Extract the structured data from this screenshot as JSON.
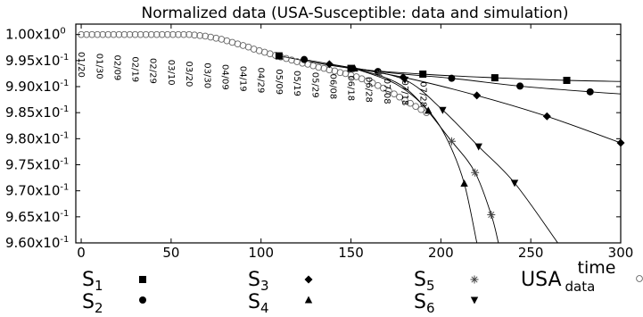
{
  "chart_data": {
    "type": "scatter",
    "title": "Normalized data (USA-Susceptible: data and simulation)",
    "xlabel": "time",
    "ylabel": "",
    "xlim": [
      -3,
      300
    ],
    "ylim": [
      0.96,
      1.002
    ],
    "x_ticks": [
      "0",
      "50",
      "100",
      "150",
      "200",
      "250",
      "300"
    ],
    "x_tick_values": [
      0,
      50,
      100,
      150,
      200,
      250,
      300
    ],
    "y_ticks": [
      {
        "value": 1.0,
        "mantissa": "1.00x10",
        "exp": "0"
      },
      {
        "value": 0.995,
        "mantissa": "9.95x10",
        "exp": "-1"
      },
      {
        "value": 0.99,
        "mantissa": "9.90x10",
        "exp": "-1"
      },
      {
        "value": 0.985,
        "mantissa": "9.85x10",
        "exp": "-1"
      },
      {
        "value": 0.98,
        "mantissa": "9.80x10",
        "exp": "-1"
      },
      {
        "value": 0.975,
        "mantissa": "9.75x10",
        "exp": "-1"
      },
      {
        "value": 0.97,
        "mantissa": "9.70x10",
        "exp": "-1"
      },
      {
        "value": 0.965,
        "mantissa": "9.65x10",
        "exp": "-1"
      },
      {
        "value": 0.96,
        "mantissa": "9.60x10",
        "exp": "-1"
      }
    ],
    "date_annotations": [
      {
        "x": 0,
        "label": "01/20"
      },
      {
        "x": 10,
        "label": "01/30"
      },
      {
        "x": 20,
        "label": "02/09"
      },
      {
        "x": 30,
        "label": "02/19"
      },
      {
        "x": 40,
        "label": "02/29"
      },
      {
        "x": 50,
        "label": "03/10"
      },
      {
        "x": 60,
        "label": "03/20"
      },
      {
        "x": 70,
        "label": "03/30"
      },
      {
        "x": 80,
        "label": "04/09"
      },
      {
        "x": 90,
        "label": "04/19"
      },
      {
        "x": 100,
        "label": "04/29"
      },
      {
        "x": 110,
        "label": "05/09"
      },
      {
        "x": 120,
        "label": "05/19"
      },
      {
        "x": 130,
        "label": "05/29"
      },
      {
        "x": 140,
        "label": "06/08"
      },
      {
        "x": 150,
        "label": "06/18"
      },
      {
        "x": 160,
        "label": "06/28"
      },
      {
        "x": 170,
        "label": "07/08"
      },
      {
        "x": 180,
        "label": "07/18"
      },
      {
        "x": 190,
        "label": "07/28"
      }
    ],
    "data_series": {
      "name": "USA",
      "name_sub": "data",
      "marker": "open-circle",
      "x": [
        0,
        3,
        6,
        9,
        12,
        15,
        18,
        21,
        24,
        27,
        30,
        33,
        36,
        39,
        42,
        45,
        48,
        51,
        54,
        57,
        60,
        63,
        66,
        69,
        72,
        75,
        78,
        81,
        84,
        87,
        90,
        93,
        96,
        99,
        102,
        105,
        108,
        111,
        114,
        117,
        120,
        123,
        126,
        129,
        132,
        135,
        138,
        141,
        144,
        147,
        150,
        153,
        156,
        159,
        162,
        165,
        168,
        171,
        174,
        177,
        180,
        183,
        186,
        189,
        192
      ],
      "y": [
        1.0,
        1.0,
        1.0,
        1.0,
        1.0,
        1.0,
        1.0,
        1.0,
        1.0,
        1.0,
        1.0,
        1.0,
        1.0,
        1.0,
        1.0,
        1.0,
        1.0,
        1.0,
        1.0,
        1.0,
        1.0,
        0.9999,
        0.9998,
        0.9997,
        0.9995,
        0.9993,
        0.9991,
        0.9988,
        0.9985,
        0.9982,
        0.9979,
        0.9976,
        0.9972,
        0.9969,
        0.9966,
        0.9963,
        0.996,
        0.9957,
        0.9954,
        0.9951,
        0.9948,
        0.9945,
        0.9943,
        0.994,
        0.9937,
        0.9935,
        0.9932,
        0.993,
        0.9927,
        0.9925,
        0.9922,
        0.9919,
        0.9915,
        0.9911,
        0.9907,
        0.9902,
        0.9897,
        0.9892,
        0.9886,
        0.988,
        0.9874,
        0.9868,
        0.9862,
        0.9856,
        0.985
      ]
    },
    "series": [
      {
        "name": "S",
        "sub": "1",
        "marker": "square",
        "x": [
          110,
          150,
          190,
          230,
          270
        ],
        "y": [
          0.9959,
          0.9935,
          0.9924,
          0.9917,
          0.9912
        ]
      },
      {
        "name": "S",
        "sub": "2",
        "marker": "circle",
        "x": [
          124,
          165,
          206,
          244,
          283
        ],
        "y": [
          0.9952,
          0.9929,
          0.9916,
          0.9901,
          0.989
        ]
      },
      {
        "name": "S",
        "sub": "3",
        "marker": "diamond",
        "x": [
          138,
          179,
          220,
          259,
          300
        ],
        "y": [
          0.9943,
          0.9918,
          0.9883,
          0.9843,
          0.9792
        ]
      },
      {
        "name": "S",
        "sub": "4",
        "marker": "triangle-up",
        "x": [
          152,
          193,
          213
        ],
        "y": [
          0.9935,
          0.9854,
          0.9714
        ]
      },
      {
        "name": "S",
        "sub": "5",
        "marker": "asterisk",
        "x": [
          166,
          206,
          219,
          228
        ],
        "y": [
          0.9925,
          0.9795,
          0.9735,
          0.9654
        ]
      },
      {
        "name": "S",
        "sub": "6",
        "marker": "triangle-down",
        "x": [
          180,
          201,
          221,
          241
        ],
        "y": [
          0.9913,
          0.9855,
          0.9785,
          0.9715
        ]
      }
    ],
    "curves": [
      {
        "x": [
          110,
          150,
          190,
          230,
          270,
          300
        ],
        "y": [
          0.9959,
          0.9935,
          0.9924,
          0.9917,
          0.9912,
          0.991
        ]
      },
      {
        "x": [
          124,
          165,
          206,
          244,
          283,
          300
        ],
        "y": [
          0.9952,
          0.9929,
          0.9916,
          0.9901,
          0.989,
          0.9886
        ]
      },
      {
        "x": [
          138,
          179,
          220,
          259,
          300
        ],
        "y": [
          0.9943,
          0.9918,
          0.9883,
          0.9843,
          0.9792
        ]
      },
      {
        "x": [
          150,
          175,
          193,
          204,
          213,
          220
        ],
        "y": [
          0.9937,
          0.9905,
          0.9854,
          0.9795,
          0.9714,
          0.96
        ]
      },
      {
        "x": [
          150,
          180,
          206,
          219,
          228,
          232
        ],
        "y": [
          0.9937,
          0.9898,
          0.9795,
          0.9735,
          0.9654,
          0.96
        ]
      },
      {
        "x": [
          150,
          180,
          201,
          221,
          241,
          265
        ],
        "y": [
          0.9937,
          0.9913,
          0.9855,
          0.9785,
          0.9715,
          0.96
        ]
      }
    ],
    "grid": false,
    "legend_placement": "bottom"
  }
}
